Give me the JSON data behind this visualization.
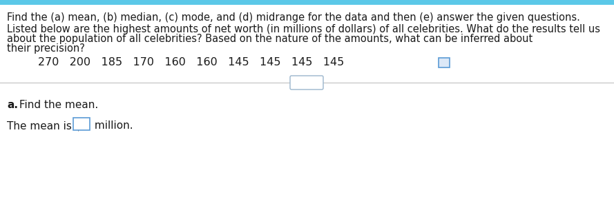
{
  "top_bar_color": "#5bc8e8",
  "background_color": "#ffffff",
  "line1": "Find the (a) mean, (b) median, (c) mode, and (d) midrange for the data and then (e) answer the given questions.",
  "line2": "Listed below are the highest amounts of net worth (in millions of dollars) of all celebrities. What do the results tell us",
  "line3": "about the population of all celebrities? Based on the nature of the amounts, what can be inferred about",
  "line4": "their precision?",
  "data_values": "270   200   185   170   160   160   145   145   145   145",
  "divider_color": "#c0c0c0",
  "dots_text": "...",
  "section_a_bold": "a.",
  "section_a_text": " Find the mean.",
  "answer_prefix": "The mean is $",
  "answer_suffix": " million.",
  "text_color": "#1a1a1a",
  "font_size_main": 10.5,
  "font_size_data": 11.5,
  "font_size_section": 11.0,
  "input_box_facecolor": "#ffffff",
  "input_box_edgecolor": "#5b9bd5",
  "icon_box_facecolor": "#dce8f7",
  "icon_box_edgecolor": "#5b9bd5"
}
